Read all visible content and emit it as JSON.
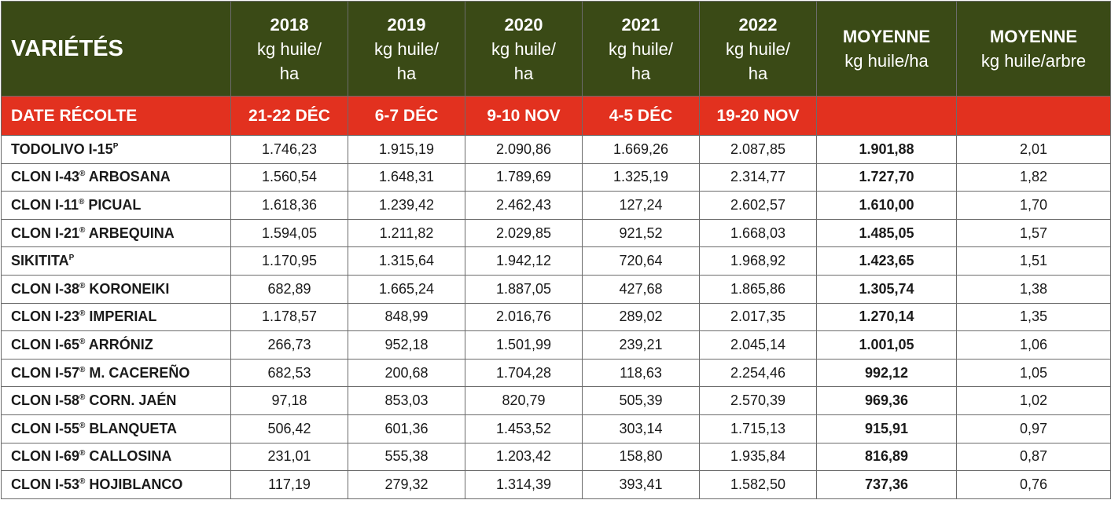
{
  "header": {
    "variety_label": "VARIÉTÉS",
    "years": [
      {
        "year": "2018",
        "unit_line1": "kg huile/",
        "unit_line2": "ha"
      },
      {
        "year": "2019",
        "unit_line1": "kg huile/",
        "unit_line2": "ha"
      },
      {
        "year": "2020",
        "unit_line1": "kg huile/",
        "unit_line2": "ha"
      },
      {
        "year": "2021",
        "unit_line1": "kg huile/",
        "unit_line2": "ha"
      },
      {
        "year": "2022",
        "unit_line1": "kg huile/",
        "unit_line2": "ha"
      }
    ],
    "avg_ha": {
      "title": "MOYENNE",
      "unit": "kg huile/ha"
    },
    "avg_tree": {
      "title": "MOYENNE",
      "unit": "kg huile/arbre"
    }
  },
  "harvest": {
    "label": "DATE RÉCOLTE",
    "dates": [
      "21-22 DÉC",
      "6-7 DÉC",
      "9-10 NOV",
      "4-5 DÉC",
      "19-20 NOV"
    ],
    "avg_ha": "",
    "avg_tree": ""
  },
  "colors": {
    "header_bg": "#3a4a16",
    "date_row_bg": "#e2311f",
    "border": "#6b6b6b"
  },
  "rows": [
    {
      "name": "TODOLIVO I-15",
      "mark": "P",
      "suffix": "",
      "values": [
        "1.746,23",
        "1.915,19",
        "2.090,86",
        "1.669,26",
        "2.087,85"
      ],
      "avg_ha": "1.901,88",
      "avg_tree": "2,01"
    },
    {
      "name": "CLON I-43",
      "mark": "®",
      "suffix": " ARBOSANA",
      "values": [
        "1.560,54",
        "1.648,31",
        "1.789,69",
        "1.325,19",
        "2.314,77"
      ],
      "avg_ha": "1.727,70",
      "avg_tree": "1,82"
    },
    {
      "name": "CLON I-11",
      "mark": "®",
      "suffix": " PICUAL",
      "values": [
        "1.618,36",
        "1.239,42",
        "2.462,43",
        "127,24",
        "2.602,57"
      ],
      "avg_ha": "1.610,00",
      "avg_tree": "1,70"
    },
    {
      "name": "CLON I-21",
      "mark": "®",
      "suffix": " ARBEQUINA",
      "values": [
        "1.594,05",
        "1.211,82",
        "2.029,85",
        "921,52",
        "1.668,03"
      ],
      "avg_ha": "1.485,05",
      "avg_tree": "1,57"
    },
    {
      "name": "SIKITITA",
      "mark": "P",
      "suffix": "",
      "values": [
        "1.170,95",
        "1.315,64",
        "1.942,12",
        "720,64",
        "1.968,92"
      ],
      "avg_ha": "1.423,65",
      "avg_tree": "1,51"
    },
    {
      "name": "CLON I-38",
      "mark": "®",
      "suffix": " KORONEIKI",
      "values": [
        "682,89",
        "1.665,24",
        "1.887,05",
        "427,68",
        "1.865,86"
      ],
      "avg_ha": "1.305,74",
      "avg_tree": "1,38"
    },
    {
      "name": "CLON I-23",
      "mark": "®",
      "suffix": " IMPERIAL",
      "values": [
        "1.178,57",
        "848,99",
        "2.016,76",
        "289,02",
        "2.017,35"
      ],
      "avg_ha": "1.270,14",
      "avg_tree": "1,35"
    },
    {
      "name": "CLON I-65",
      "mark": "®",
      "suffix": " ARRÓNIZ",
      "values": [
        "266,73",
        "952,18",
        "1.501,99",
        "239,21",
        "2.045,14"
      ],
      "avg_ha": "1.001,05",
      "avg_tree": "1,06"
    },
    {
      "name": "CLON I-57",
      "mark": "®",
      "suffix": " M. CACEREÑO",
      "values": [
        "682,53",
        "200,68",
        "1.704,28",
        "118,63",
        "2.254,46"
      ],
      "avg_ha": "992,12",
      "avg_tree": "1,05"
    },
    {
      "name": "CLON I-58",
      "mark": "®",
      "suffix": " CORN. JAÉN",
      "values": [
        "97,18",
        "853,03",
        "820,79",
        "505,39",
        "2.570,39"
      ],
      "avg_ha": "969,36",
      "avg_tree": "1,02"
    },
    {
      "name": "CLON I-55",
      "mark": "®",
      "suffix": " BLANQUETA",
      "values": [
        "506,42",
        "601,36",
        "1.453,52",
        "303,14",
        "1.715,13"
      ],
      "avg_ha": "915,91",
      "avg_tree": "0,97"
    },
    {
      "name": "CLON I-69",
      "mark": "®",
      "suffix": " CALLOSINA",
      "values": [
        "231,01",
        "555,38",
        "1.203,42",
        "158,80",
        "1.935,84"
      ],
      "avg_ha": "816,89",
      "avg_tree": "0,87"
    },
    {
      "name": "CLON I-53",
      "mark": "®",
      "suffix": " HOJIBLANCO",
      "values": [
        "117,19",
        "279,32",
        "1.314,39",
        "393,41",
        "1.582,50"
      ],
      "avg_ha": "737,36",
      "avg_tree": "0,76"
    }
  ]
}
